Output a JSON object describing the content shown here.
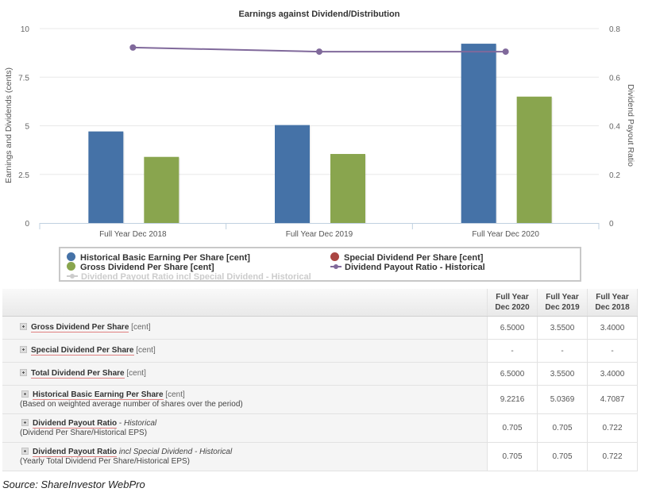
{
  "chart_data": {
    "type": "bar",
    "title": "Earnings against Dividend/Distribution",
    "xlabel": "",
    "ylabel": "Earnings and Dividends (cents)",
    "y2label": "Dividend Payout Ratio",
    "categories": [
      "Full Year Dec 2018",
      "Full Year Dec 2019",
      "Full Year Dec 2020"
    ],
    "ylim": [
      0,
      10
    ],
    "y2lim": [
      0,
      0.8
    ],
    "yticks": [
      "0",
      "2.5",
      "5",
      "7.5",
      "10"
    ],
    "y2ticks": [
      "0",
      "0.2",
      "0.4",
      "0.6",
      "0.8"
    ],
    "grid": true,
    "legend_position": "bottom",
    "series": [
      {
        "name": "Historical Basic Earning Per Share [cent]",
        "type": "bar",
        "axis": "left",
        "color": "#4572a7",
        "values": [
          4.7087,
          5.0369,
          9.2216
        ]
      },
      {
        "name": "Gross Dividend Per Share [cent]",
        "type": "bar",
        "axis": "left",
        "color": "#89a54e",
        "values": [
          3.4,
          3.55,
          6.5
        ]
      },
      {
        "name": "Special Dividend Per Share [cent]",
        "type": "bar",
        "axis": "left",
        "color": "#aa4643",
        "values": [
          null,
          null,
          null
        ]
      },
      {
        "name": "Dividend Payout Ratio - Historical",
        "type": "line",
        "axis": "right",
        "color": "#80699b",
        "values": [
          0.722,
          0.705,
          0.705
        ]
      },
      {
        "name": "Dividend Payout Ratio incl Special Dividend - Historical",
        "type": "line",
        "axis": "right",
        "color": "#cccccc",
        "hidden": true,
        "values": [
          0.722,
          0.705,
          0.705
        ]
      }
    ]
  },
  "table": {
    "columns": [
      "Full Year Dec 2020",
      "Full Year Dec 2019",
      "Full Year Dec 2018"
    ],
    "column_lines": [
      [
        "Full Year",
        "Dec 2020"
      ],
      [
        "Full Year",
        "Dec 2019"
      ],
      [
        "Full Year",
        "Dec 2018"
      ]
    ],
    "rows": [
      {
        "name": "Gross Dividend Per Share",
        "unit": "[cent]",
        "italic": "",
        "note": "",
        "values": [
          "6.5000",
          "3.5500",
          "3.4000"
        ]
      },
      {
        "name": "Special Dividend Per Share",
        "unit": "[cent]",
        "italic": "",
        "note": "",
        "values": [
          "-",
          "-",
          "-"
        ]
      },
      {
        "name": "Total Dividend Per Share",
        "unit": "[cent]",
        "italic": "",
        "note": "",
        "values": [
          "6.5000",
          "3.5500",
          "3.4000"
        ]
      },
      {
        "name": "Historical Basic Earning Per Share",
        "unit": "[cent]",
        "italic": "",
        "note": "(Based on weighted average number of shares over the period)",
        "values": [
          "9.2216",
          "5.0369",
          "4.7087"
        ]
      },
      {
        "name": "Dividend Payout Ratio",
        "unit": "",
        "italic": "Historical",
        "note": "(Dividend Per Share/Historical EPS)",
        "values": [
          "0.705",
          "0.705",
          "0.722"
        ]
      },
      {
        "name": "Dividend Payout Ratio",
        "unit": "",
        "italic": "incl Special Dividend - Historical",
        "note": "(Yearly Total Dividend Per Share/Historical EPS)",
        "values": [
          "0.705",
          "0.705",
          "0.722"
        ]
      }
    ],
    "dash_separator": " - "
  },
  "source": "Source: ShareInvestor WebPro"
}
